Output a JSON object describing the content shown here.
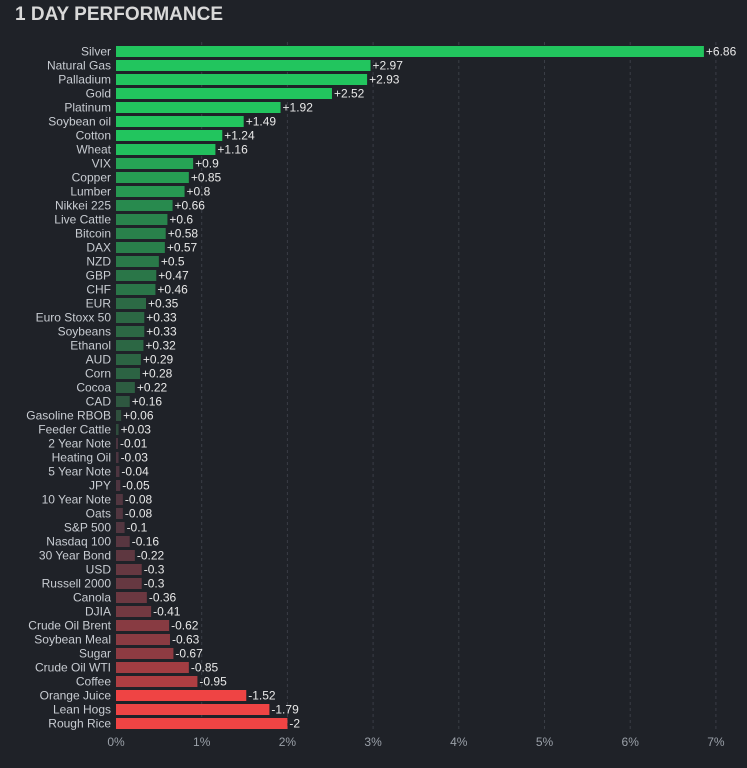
{
  "title": "1 DAY PERFORMANCE",
  "chart_data": {
    "type": "bar",
    "orientation": "horizontal",
    "title": "1 DAY PERFORMANCE",
    "xlabel": "",
    "ylabel": "",
    "xlim": [
      0,
      7
    ],
    "x_ticks": [
      "0%",
      "1%",
      "2%",
      "3%",
      "4%",
      "5%",
      "6%",
      "7%"
    ],
    "grid": true,
    "categories": [
      "Silver",
      "Natural Gas",
      "Palladium",
      "Gold",
      "Platinum",
      "Soybean oil",
      "Cotton",
      "Wheat",
      "VIX",
      "Copper",
      "Lumber",
      "Nikkei 225",
      "Live Cattle",
      "Bitcoin",
      "DAX",
      "NZD",
      "GBP",
      "CHF",
      "EUR",
      "Euro Stoxx 50",
      "Soybeans",
      "Ethanol",
      "AUD",
      "Corn",
      "Cocoa",
      "CAD",
      "Gasoline RBOB",
      "Feeder Cattle",
      "2 Year Note",
      "Heating Oil",
      "5 Year Note",
      "JPY",
      "10 Year Note",
      "Oats",
      "S&P 500",
      "Nasdaq 100",
      "30 Year Bond",
      "USD",
      "Russell 2000",
      "Canola",
      "DJIA",
      "Crude Oil Brent",
      "Soybean Meal",
      "Sugar",
      "Crude Oil WTI",
      "Coffee",
      "Orange Juice",
      "Lean Hogs",
      "Rough Rice"
    ],
    "values": [
      6.86,
      2.97,
      2.93,
      2.52,
      1.92,
      1.49,
      1.24,
      1.16,
      0.9,
      0.85,
      0.8,
      0.66,
      0.6,
      0.58,
      0.57,
      0.5,
      0.47,
      0.46,
      0.35,
      0.33,
      0.33,
      0.32,
      0.29,
      0.28,
      0.22,
      0.16,
      0.06,
      0.03,
      -0.01,
      -0.03,
      -0.04,
      -0.05,
      -0.08,
      -0.08,
      -0.1,
      -0.16,
      -0.22,
      -0.3,
      -0.3,
      -0.36,
      -0.41,
      -0.62,
      -0.63,
      -0.67,
      -0.85,
      -0.95,
      -1.52,
      -1.79,
      -2
    ],
    "value_labels": [
      "+6.86",
      "+2.97",
      "+2.93",
      "+2.52",
      "+1.92",
      "+1.49",
      "+1.24",
      "+1.16",
      "+0.9",
      "+0.85",
      "+0.8",
      "+0.66",
      "+0.6",
      "+0.58",
      "+0.57",
      "+0.5",
      "+0.47",
      "+0.46",
      "+0.35",
      "+0.33",
      "+0.33",
      "+0.32",
      "+0.29",
      "+0.28",
      "+0.22",
      "+0.16",
      "+0.06",
      "+0.03",
      "-0.01",
      "-0.03",
      "-0.04",
      "-0.05",
      "-0.08",
      "-0.08",
      "-0.1",
      "-0.16",
      "-0.22",
      "-0.3",
      "-0.3",
      "-0.36",
      "-0.41",
      "-0.62",
      "-0.63",
      "-0.67",
      "-0.85",
      "-0.95",
      "-1.52",
      "-1.79",
      "-2"
    ],
    "note": "bar length shows absolute value; green for gains, red for losses",
    "colors": {
      "positive_strong": "#22c55e",
      "positive_weak": "#2f4a3c",
      "negative_weak": "#4a3540",
      "negative_strong": "#ef4444",
      "background": "#1f2228",
      "grid": "#3a3e46"
    }
  }
}
